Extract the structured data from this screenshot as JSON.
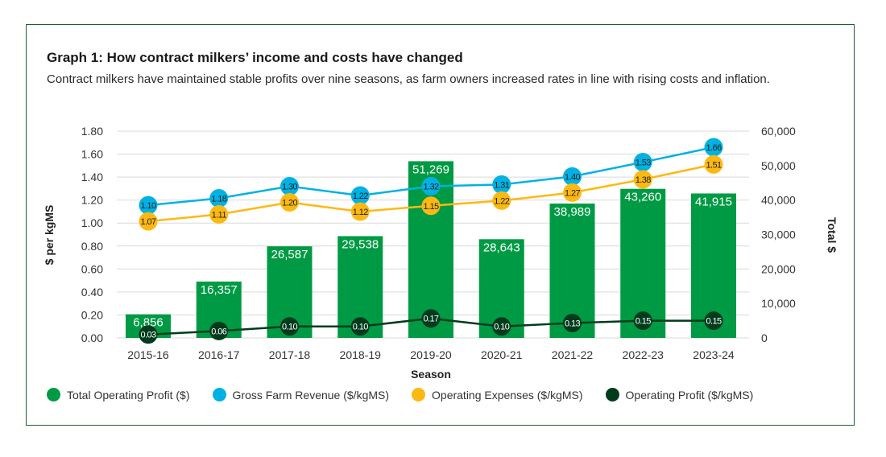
{
  "chart_data": {
    "type": "bar+line",
    "title": "Graph 1: How contract milkers’ income and costs have changed",
    "subtitle": "Contract milkers have maintained stable profits over nine seasons, as farm owners increased rates in line with rising costs and inflation.",
    "xlabel": "Season",
    "ylabel_left": "$ per kgMS",
    "ylabel_right": "Total $",
    "ylim_left": [
      0,
      1.8
    ],
    "ylim_right": [
      0,
      60000
    ],
    "yticks_left": [
      "0.00",
      "0.20",
      "0.40",
      "0.60",
      "0.80",
      "1.00",
      "1.20",
      "1.40",
      "1.60",
      "1.80"
    ],
    "yticks_right": [
      "0",
      "10,000",
      "20,000",
      "30,000",
      "40,000",
      "50,000",
      "60,000"
    ],
    "grid": true,
    "legend_position": "bottom",
    "categories": [
      "2015-16",
      "2016-17",
      "2017-18",
      "2018-19",
      "2019-20",
      "2020-21",
      "2021-22",
      "2022-23",
      "2023-24"
    ],
    "series": [
      {
        "name": "Total Operating Profit ($)",
        "type": "bar",
        "axis": "right",
        "color": "#009a44",
        "values": [
          6856,
          16357,
          26587,
          29538,
          51269,
          28643,
          38989,
          43260,
          41915
        ],
        "labels": [
          "6,856",
          "16,357",
          "26,587",
          "29,538",
          "51,269",
          "28,643",
          "38,989",
          "43,260",
          "41,915"
        ]
      },
      {
        "name": "Gross Farm Revenue ($/kgMS)",
        "type": "line",
        "axis": "left",
        "color": "#00b2e3",
        "values": [
          1.1,
          1.18,
          1.3,
          1.22,
          1.32,
          1.31,
          1.4,
          1.53,
          1.66
        ]
      },
      {
        "name": "Operating Expenses ($/kgMS)",
        "type": "line",
        "axis": "left",
        "color": "#fdb913",
        "values": [
          1.07,
          1.11,
          1.2,
          1.12,
          1.15,
          1.22,
          1.27,
          1.38,
          1.51
        ]
      },
      {
        "name": "Operating Profit ($/kgMS)",
        "type": "line",
        "axis": "left",
        "color": "#003b1c",
        "values": [
          0.03,
          0.06,
          0.1,
          0.1,
          0.17,
          0.1,
          0.13,
          0.15,
          0.15
        ]
      }
    ]
  }
}
